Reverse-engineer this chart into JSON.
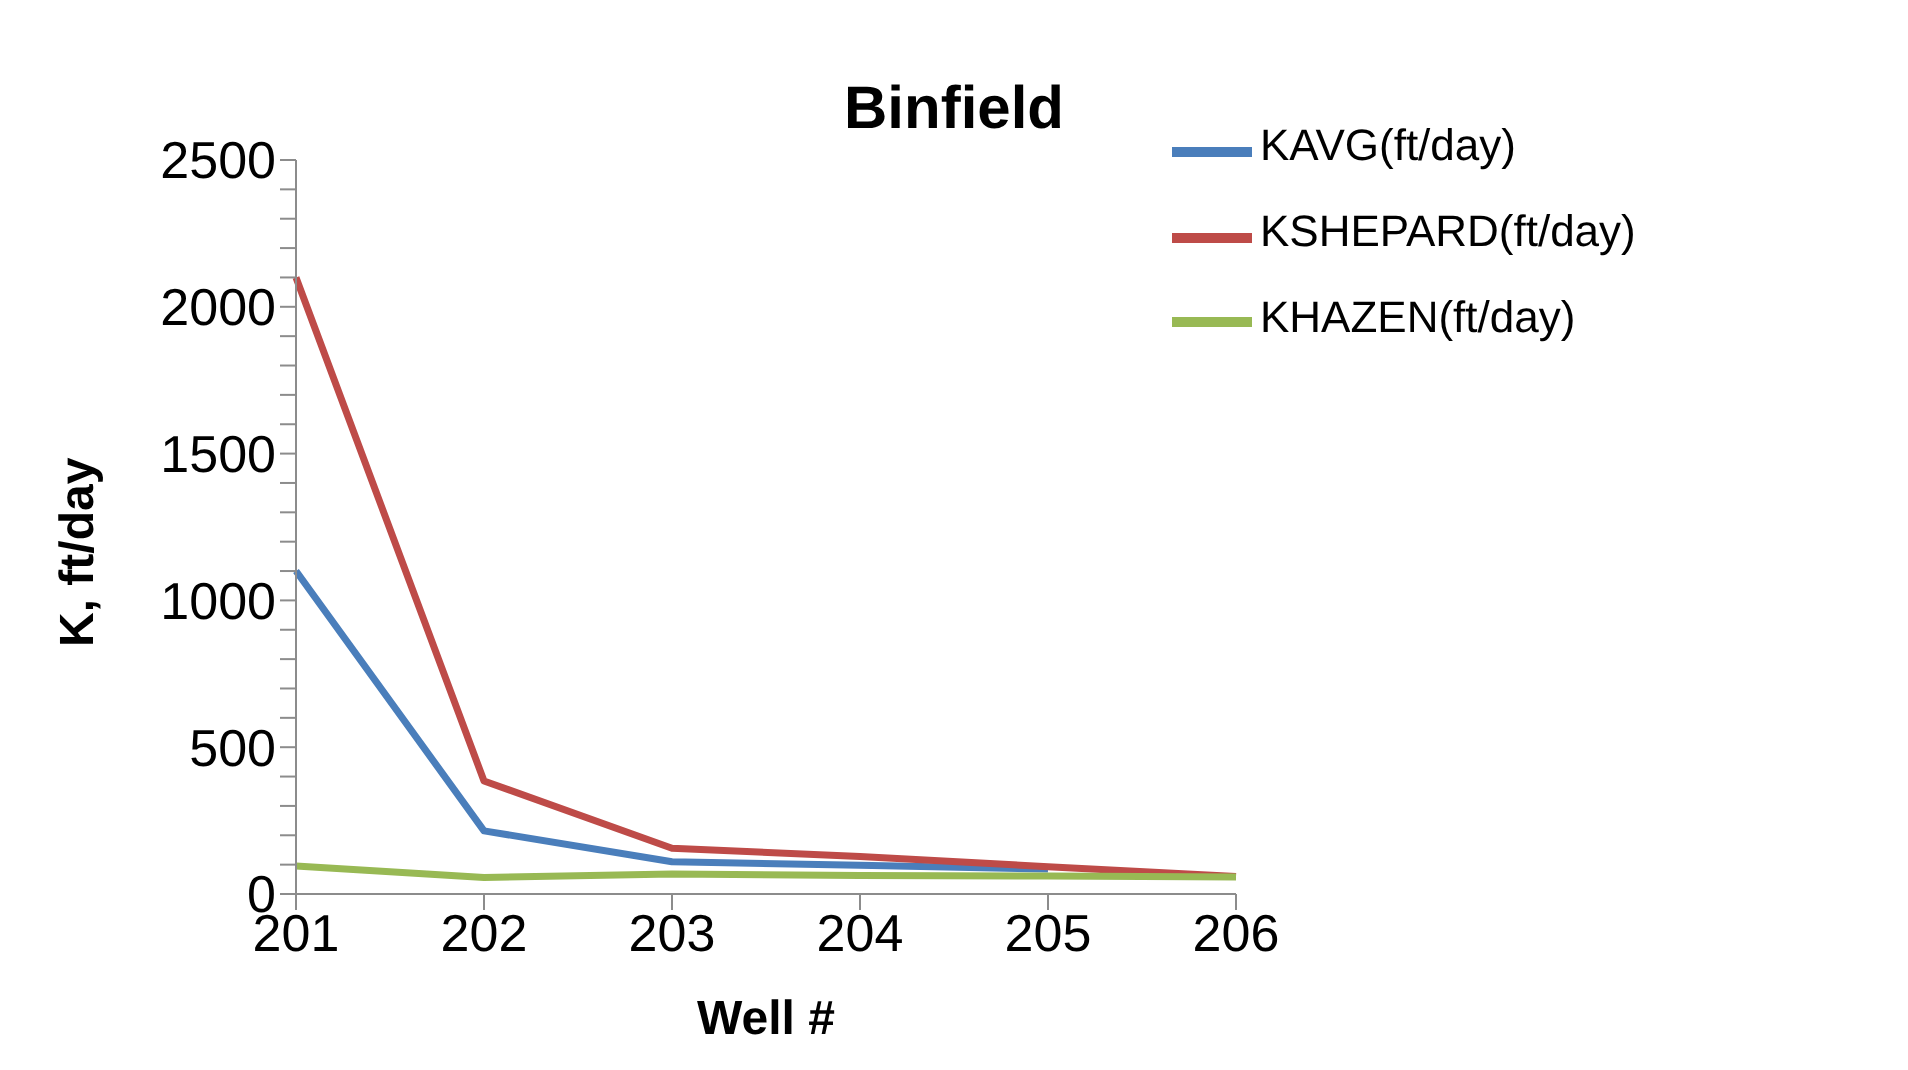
{
  "chart_data": {
    "type": "line",
    "title": "Binfield",
    "xlabel": "Well #",
    "ylabel": "K, ft/day",
    "categories": [
      "201",
      "202",
      "203",
      "204",
      "205",
      "206"
    ],
    "series": [
      {
        "name": "KAVG(ft/day)",
        "color": "#4a7ebb",
        "values": [
          1100,
          215,
          110,
          98,
          85,
          null
        ]
      },
      {
        "name": "KSHEPARD(ft/day)",
        "color": "#be4b48",
        "values": [
          2100,
          385,
          156,
          128,
          93,
          60
        ]
      },
      {
        "name": "KHAZEN(ft/day)",
        "color": "#98b954",
        "values": [
          95,
          56,
          68,
          63,
          61,
          58
        ]
      }
    ],
    "ylim": [
      0,
      2500
    ],
    "yticks": [
      0,
      500,
      1000,
      1500,
      2000,
      2500
    ],
    "grid": false,
    "legend": "top right",
    "marker": "none",
    "line_style": "solid"
  }
}
